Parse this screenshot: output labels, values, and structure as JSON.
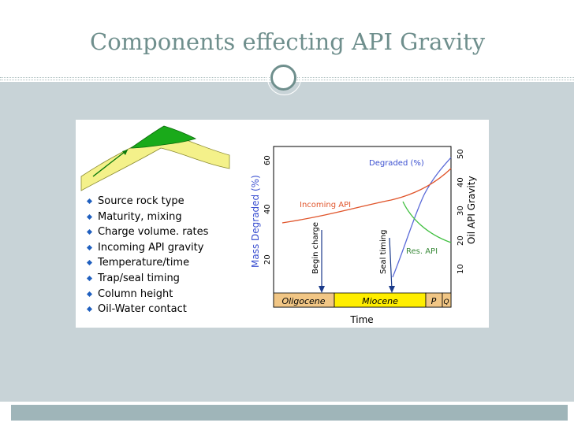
{
  "slide": {
    "title": "Components effecting API Gravity",
    "bullets": [
      "Source rock type",
      "Maturity, mixing",
      "Charge volume. rates",
      "Incoming API gravity",
      "Temperature/time",
      "Trap/seal timing",
      "Column height",
      "Oil-Water contact"
    ]
  },
  "chart": {
    "left_axis_title": "Mass Degraded (%)",
    "left_ticks": [
      "20",
      "40",
      "60"
    ],
    "right_axis_title": "Oil API Gravity",
    "right_ticks": [
      "10",
      "20",
      "30",
      "40",
      "50"
    ],
    "x_axis_title": "Time",
    "epochs": [
      "Oligocene",
      "Miocene",
      "P",
      "Q"
    ],
    "curve_labels": {
      "degraded": "Degraded (%)",
      "incoming": "Incoming API",
      "reservoir": "Res. API"
    },
    "events": [
      "Begin charge",
      "Seal timing"
    ],
    "colors": {
      "degraded": "#5a6ad8",
      "incoming": "#e0542a",
      "reservoir": "#3fbf3f",
      "label_blue": "#3a4fd0",
      "epoch_band": "#f1c685",
      "epoch_miocene": "#ffee00"
    }
  }
}
